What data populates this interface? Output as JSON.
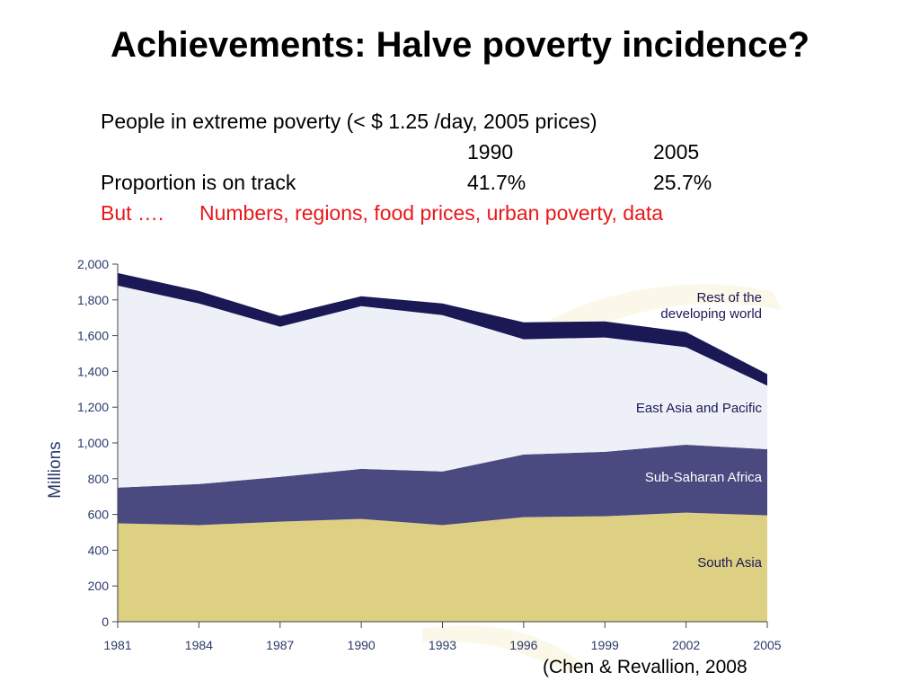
{
  "slide": {
    "title": "Achievements: Halve poverty incidence?",
    "line1": "People in extreme poverty (< $ 1.25 /day, 2005 prices)",
    "year_a": "1990",
    "year_b": "2005",
    "track_label": "Proportion is on track",
    "value_a": "41.7%",
    "value_b": "25.7%",
    "but_label": "But ….",
    "but_text": "Numbers, regions, food prices, urban poverty, data",
    "credit": "(Chen & Revallion, 2008"
  },
  "chart_data": {
    "type": "area",
    "stacked": true,
    "ylabel": "Millions",
    "ylim": [
      0,
      2000
    ],
    "yticks": [
      "0",
      "200",
      "400",
      "600",
      "800",
      "1,000",
      "1,200",
      "1,400",
      "1,600",
      "1,800",
      "2,000"
    ],
    "categories": [
      "1981",
      "1984",
      "1987",
      "1990",
      "1993",
      "1996",
      "1999",
      "2002",
      "2005"
    ],
    "grid": false,
    "series": [
      {
        "name": "South Asia",
        "color": "#ddd082",
        "values": [
          550,
          540,
          560,
          575,
          540,
          585,
          590,
          610,
          595
        ]
      },
      {
        "name": "Sub-Saharan Africa",
        "color": "#4b4a80",
        "values": [
          200,
          230,
          250,
          280,
          300,
          350,
          360,
          380,
          370
        ]
      },
      {
        "name": "East Asia and Pacific",
        "color": "#eef0f8",
        "values": [
          1130,
          1010,
          840,
          910,
          875,
          645,
          640,
          545,
          355
        ]
      },
      {
        "name": "Rest of the developing world",
        "color": "#1b1955",
        "values": [
          70,
          70,
          60,
          55,
          65,
          95,
          90,
          85,
          65
        ]
      }
    ],
    "legend_labels": [
      {
        "line1": "Rest of the",
        "line2": "developing world"
      },
      {
        "line1": "East Asia and Pacific"
      },
      {
        "line1": "Sub-Saharan Africa"
      },
      {
        "line1": "South Asia"
      }
    ]
  }
}
